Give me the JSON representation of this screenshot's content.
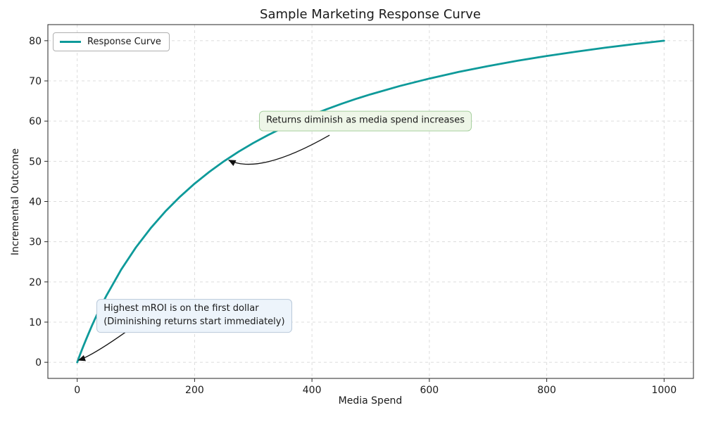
{
  "chart_data": {
    "type": "line",
    "title": "Sample Marketing Response Curve",
    "xlabel": "Media Spend",
    "ylabel": "Incremental Outcome",
    "xlim": [
      -50,
      1050
    ],
    "ylim": [
      -4,
      84
    ],
    "xticks": [
      0,
      200,
      400,
      600,
      800,
      1000
    ],
    "yticks": [
      0,
      10,
      20,
      30,
      40,
      50,
      60,
      70,
      80
    ],
    "grid": "dashed",
    "legend_position": "upper-left",
    "accent_color": "#0e9a9a",
    "series": [
      {
        "name": "Response Curve",
        "x": [
          0,
          5,
          10,
          15,
          20,
          25,
          30,
          40,
          50,
          75,
          100,
          125,
          150,
          175,
          200,
          225,
          250,
          275,
          300,
          325,
          350,
          375,
          400,
          425,
          450,
          475,
          500,
          550,
          600,
          650,
          700,
          750,
          800,
          850,
          900,
          950,
          1000
        ],
        "y": [
          0,
          1.96,
          3.85,
          5.66,
          7.41,
          9.09,
          10.71,
          13.79,
          16.67,
          23.08,
          28.57,
          33.33,
          37.5,
          41.18,
          44.44,
          47.37,
          50,
          52.38,
          54.55,
          56.52,
          58.33,
          60,
          61.54,
          62.96,
          64.29,
          65.52,
          66.67,
          68.75,
          70.59,
          72.22,
          73.68,
          75,
          76.19,
          77.27,
          78.26,
          79.17,
          80
        ]
      }
    ],
    "annotations": [
      {
        "lines": [
          "Returns diminish as media spend increases"
        ],
        "box_xy": [
          310,
          60
        ],
        "bg": "#eef6e8",
        "border": "#a6cf9e",
        "arrow": {
          "start": [
            430,
            56.5
          ],
          "ctrl": [
            310,
            46.5
          ],
          "end": [
            258,
            50.3
          ]
        }
      },
      {
        "lines": [
          "Highest mROI is on the first dollar",
          "(Diminishing returns start immediately)"
        ],
        "box_xy": [
          33,
          11.5
        ],
        "bg": "#edf4fb",
        "border": "#b9c9da",
        "arrow": {
          "start": [
            90,
            8.3
          ],
          "ctrl": [
            28,
            1.8
          ],
          "end": [
            2,
            0.5
          ]
        }
      }
    ]
  },
  "legend": {
    "label": "Response Curve"
  }
}
